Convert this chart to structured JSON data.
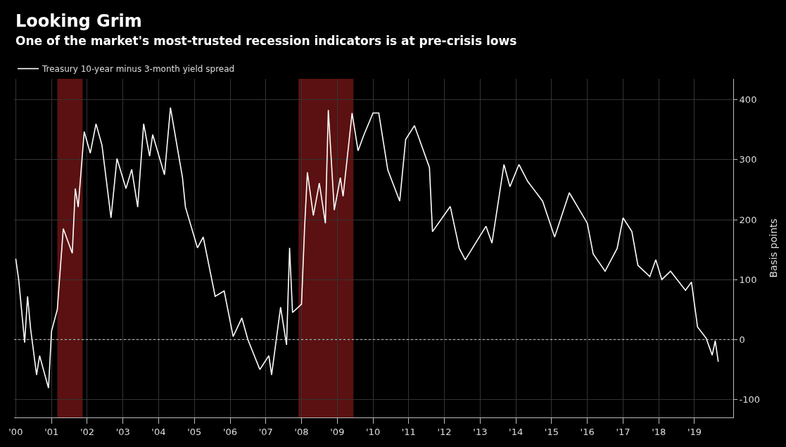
{
  "chart_data": {
    "type": "line",
    "title": "Looking Grim",
    "subtitle": "One of the market's most-trusted recession indicators is at pre-crisis lows",
    "ylabel": "Basis points",
    "x": [
      "2000-01",
      "2000-02",
      "2000-04",
      "2000-05",
      "2000-06",
      "2000-08",
      "2000-09",
      "2000-12",
      "2001-01",
      "2001-03",
      "2001-05",
      "2001-08",
      "2001-09",
      "2001-10",
      "2001-12",
      "2002-02",
      "2002-04",
      "2002-06",
      "2002-09",
      "2002-11",
      "2003-02",
      "2003-04",
      "2003-06",
      "2003-08",
      "2003-10",
      "2003-11",
      "2004-03",
      "2004-05",
      "2004-09",
      "2004-10",
      "2005-02",
      "2005-04",
      "2005-08",
      "2005-11",
      "2006-02",
      "2006-05",
      "2006-07",
      "2006-11",
      "2007-02",
      "2007-03",
      "2007-06",
      "2007-08",
      "2007-09",
      "2007-10",
      "2008-01",
      "2008-02",
      "2008-03",
      "2008-05",
      "2008-07",
      "2008-09",
      "2008-10",
      "2008-12",
      "2009-02",
      "2009-03",
      "2009-06",
      "2009-08",
      "2009-10",
      "2010-01",
      "2010-03",
      "2010-06",
      "2010-10",
      "2010-12",
      "2011-03",
      "2011-08",
      "2011-09",
      "2012-03",
      "2012-06",
      "2012-08",
      "2013-03",
      "2013-05",
      "2013-09",
      "2013-11",
      "2014-02",
      "2014-05",
      "2014-10",
      "2015-02",
      "2015-07",
      "2016-01",
      "2016-03",
      "2016-07",
      "2016-11",
      "2017-01",
      "2017-04",
      "2017-06",
      "2017-10",
      "2017-12",
      "2018-02",
      "2018-05",
      "2018-10",
      "2018-12",
      "2019-02",
      "2019-05",
      "2019-07",
      "2019-08",
      "2019-09"
    ],
    "series": [
      {
        "name": "Treasury 10-year minus 3-month yield spread",
        "color": "#ffffff",
        "values": [
          135,
          99,
          -5,
          72,
          18,
          -59,
          -27,
          -81,
          14,
          50,
          185,
          144,
          252,
          221,
          347,
          311,
          360,
          324,
          203,
          302,
          252,
          284,
          221,
          360,
          306,
          342,
          275,
          387,
          270,
          221,
          153,
          171,
          72,
          81,
          5,
          36,
          0,
          -50,
          -27,
          -59,
          54,
          -9,
          153,
          45,
          59,
          185,
          279,
          207,
          261,
          194,
          383,
          216,
          270,
          239,
          378,
          315,
          342,
          378,
          378,
          283,
          231,
          334,
          357,
          287,
          180,
          222,
          152,
          133,
          189,
          161,
          292,
          255,
          292,
          264,
          231,
          171,
          245,
          194,
          143,
          114,
          152,
          203,
          180,
          124,
          105,
          133,
          100,
          114,
          82,
          96,
          21,
          2,
          -26,
          -2,
          -37
        ]
      }
    ],
    "xlim": [
      "1999-12-15",
      "2020-02-01"
    ],
    "xticks": [
      {
        "value": "2000-01-01",
        "label": "'00"
      },
      {
        "value": "2001-01-01",
        "label": "'01"
      },
      {
        "value": "2002-01-01",
        "label": "'02"
      },
      {
        "value": "2003-01-01",
        "label": "'03"
      },
      {
        "value": "2004-01-01",
        "label": "'04"
      },
      {
        "value": "2005-01-01",
        "label": "'05"
      },
      {
        "value": "2006-01-01",
        "label": "'06"
      },
      {
        "value": "2007-01-01",
        "label": "'07"
      },
      {
        "value": "2008-01-01",
        "label": "'08"
      },
      {
        "value": "2009-01-01",
        "label": "'09"
      },
      {
        "value": "2010-01-01",
        "label": "'10"
      },
      {
        "value": "2011-01-01",
        "label": "'11"
      },
      {
        "value": "2012-01-01",
        "label": "'12"
      },
      {
        "value": "2013-01-01",
        "label": "'13"
      },
      {
        "value": "2014-01-01",
        "label": "'14"
      },
      {
        "value": "2015-01-01",
        "label": "'15"
      },
      {
        "value": "2016-01-01",
        "label": "'16"
      },
      {
        "value": "2017-01-01",
        "label": "'17"
      },
      {
        "value": "2018-01-01",
        "label": "'18"
      },
      {
        "value": "2019-01-01",
        "label": "'19"
      }
    ],
    "ylim": [
      -130,
      435
    ],
    "yticks": [
      -100,
      0,
      100,
      200,
      300,
      400
    ],
    "ref_lines": [
      {
        "axis": "y",
        "value": 0,
        "color": "#cccccc",
        "line_style": "dotted"
      }
    ],
    "bands": [
      {
        "axis": "x",
        "from": "2001-03-01",
        "to": "2001-11-15",
        "color": "#6b1414"
      },
      {
        "axis": "x",
        "from": "2007-12-01",
        "to": "2009-06-15",
        "color": "#6b1414"
      }
    ],
    "grid": true,
    "legend": "top left",
    "line_style": "solid",
    "marker": "none"
  }
}
